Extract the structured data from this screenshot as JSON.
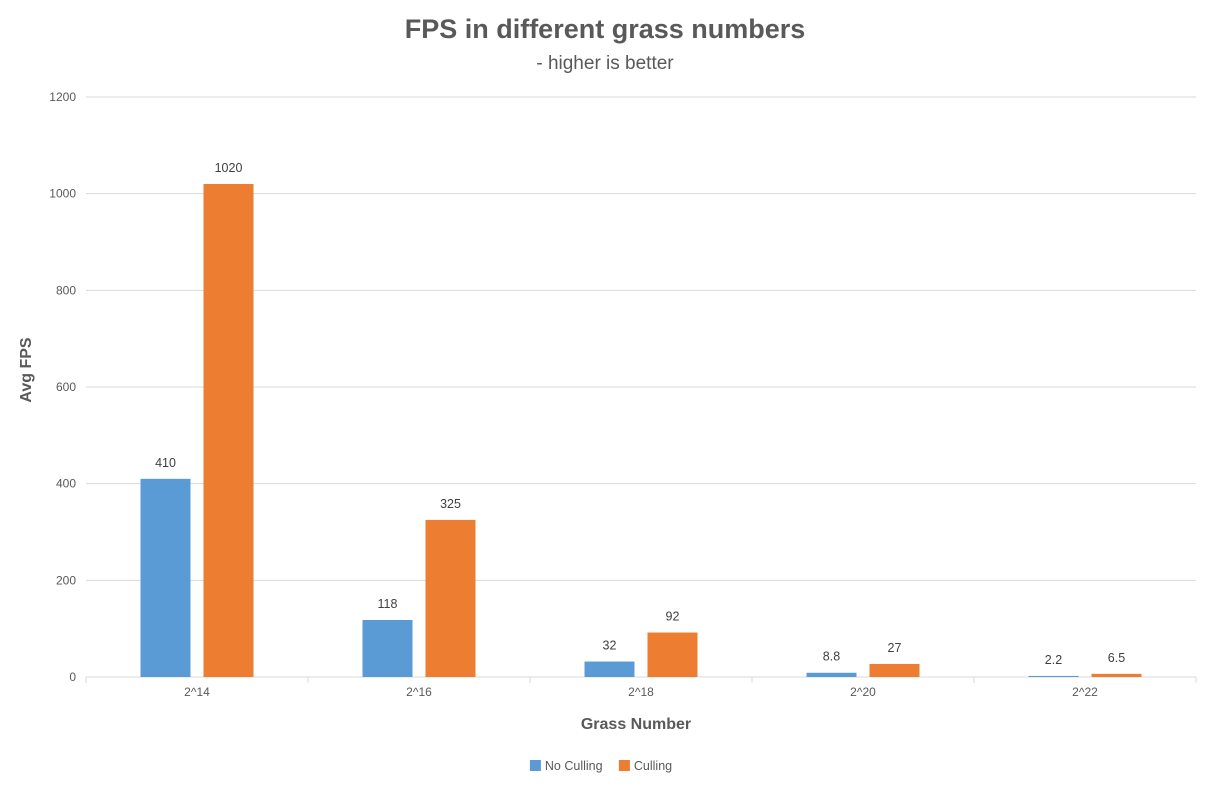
{
  "chart_data": {
    "type": "bar",
    "title": "FPS in different grass numbers",
    "subtitle": "- higher is better",
    "xlabel": "Grass Number",
    "ylabel": "Avg FPS",
    "categories": [
      "2^14",
      "2^16",
      "2^18",
      "2^20",
      "2^22"
    ],
    "series": [
      {
        "name": "No Culling",
        "color": "#5B9BD5",
        "values": [
          410,
          118,
          32,
          8.8,
          2.2
        ],
        "labels": [
          "410",
          "118",
          "32",
          "8.8",
          "2.2"
        ]
      },
      {
        "name": "Culling",
        "color": "#ED7D31",
        "values": [
          1020,
          325,
          92,
          27,
          6.5
        ],
        "labels": [
          "1020",
          "325",
          "92",
          "27",
          "6.5"
        ]
      }
    ],
    "ylim": [
      0,
      1200
    ],
    "yticks": [
      0,
      200,
      400,
      600,
      800,
      1000,
      1200
    ],
    "grid": true,
    "legend": "bottom-center"
  }
}
